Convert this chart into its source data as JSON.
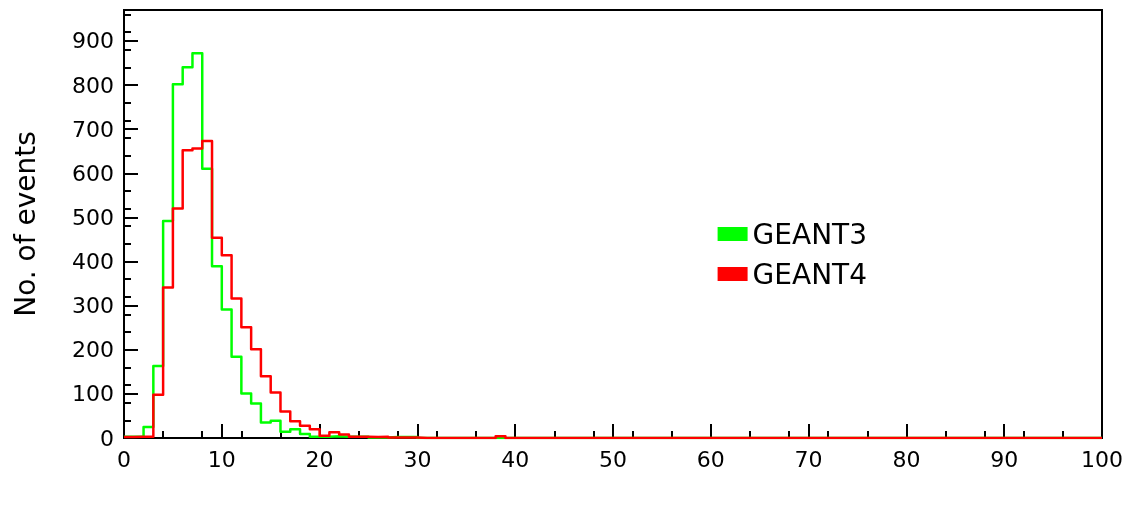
{
  "chart_data": {
    "type": "histogram",
    "ylabel": "No. of events",
    "bins": [
      0,
      1,
      2,
      3,
      4,
      5,
      6,
      7,
      8,
      9,
      10,
      11,
      12,
      13,
      14,
      15,
      16,
      17,
      18,
      19,
      20,
      21,
      22,
      23,
      24,
      25,
      26,
      27,
      28,
      29,
      30,
      31,
      32,
      33,
      34,
      35,
      36,
      37,
      38,
      39,
      40,
      41,
      42,
      43,
      44,
      45,
      46,
      47,
      48,
      49,
      50,
      51,
      52,
      53,
      54,
      55,
      56,
      57,
      58,
      59,
      60,
      61,
      62,
      63,
      64,
      65,
      66,
      67,
      68,
      69,
      70,
      71,
      72,
      73,
      74,
      75,
      76,
      77,
      78,
      79,
      80,
      81,
      82,
      83,
      84,
      85,
      86,
      87,
      88,
      89,
      90,
      91,
      92,
      93,
      94,
      95,
      96,
      97,
      98,
      99,
      100
    ],
    "series": [
      {
        "name": "GEANT3",
        "color": "#00ff00",
        "values": [
          3,
          3,
          25,
          163,
          492,
          802,
          840,
          872,
          610,
          389,
          291,
          184,
          101,
          78,
          35,
          39,
          14,
          20,
          9,
          3,
          3,
          4,
          3,
          3,
          3,
          1,
          1,
          2,
          2,
          2,
          0,
          0,
          0,
          0,
          0,
          0,
          0,
          0,
          0,
          0,
          0,
          0,
          0,
          0,
          0,
          0,
          0,
          0,
          0,
          0,
          0,
          0,
          0,
          0,
          0,
          0,
          0,
          0,
          0,
          0,
          0,
          0,
          0,
          0,
          0,
          0,
          0,
          0,
          0,
          0,
          0,
          0,
          0,
          0,
          0,
          0,
          0,
          0,
          0,
          0,
          0,
          0,
          0,
          0,
          0,
          0,
          0,
          0,
          0,
          0,
          0,
          0,
          0,
          0,
          0,
          0,
          0,
          0,
          0,
          0
        ]
      },
      {
        "name": "GEANT4",
        "color": "#ff0000",
        "values": [
          2,
          3,
          3,
          98,
          341,
          520,
          652,
          656,
          673,
          454,
          414,
          316,
          251,
          201,
          140,
          103,
          60,
          38,
          28,
          20,
          5,
          13,
          8,
          3,
          3,
          2,
          3,
          1,
          1,
          1,
          0,
          0,
          0,
          0,
          0,
          0,
          0,
          0,
          4,
          0,
          0,
          0,
          0,
          0,
          0,
          0,
          0,
          0,
          0,
          0,
          0,
          0,
          0,
          0,
          0,
          0,
          0,
          0,
          0,
          0,
          0,
          0,
          0,
          0,
          0,
          0,
          0,
          0,
          0,
          0,
          0,
          0,
          0,
          0,
          0,
          0,
          0,
          0,
          0,
          0,
          0,
          0,
          0,
          0,
          0,
          0,
          0,
          0,
          0,
          0,
          0,
          0,
          0,
          0,
          0,
          0,
          0,
          0,
          0,
          0
        ]
      }
    ],
    "xlim": [
      0,
      100
    ],
    "xticks": [
      0,
      10,
      20,
      30,
      40,
      50,
      60,
      70,
      80,
      90,
      100
    ],
    "ylim": [
      0,
      970
    ],
    "yticks": [
      0,
      100,
      200,
      300,
      400,
      500,
      600,
      700,
      800,
      900
    ],
    "grid": false,
    "legend": "right"
  }
}
